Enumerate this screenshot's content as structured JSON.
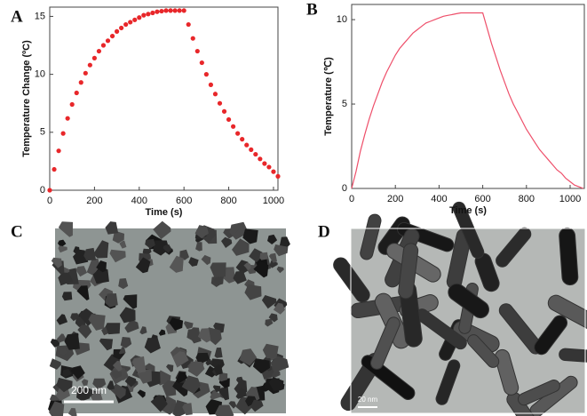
{
  "chart_data": [
    {
      "type": "scatter",
      "label": "A",
      "x_label": "Time (s)",
      "y_label": "Temperature  Change (ºC)",
      "color": "#e8272a",
      "xlim": [
        0,
        1020
      ],
      "xticks": [
        0,
        200,
        400,
        600,
        800,
        1000
      ],
      "ylim": [
        0,
        15.8
      ],
      "yticks": [
        0,
        5,
        10,
        15
      ],
      "x": [
        0,
        20,
        40,
        60,
        80,
        100,
        120,
        140,
        160,
        180,
        200,
        220,
        240,
        260,
        280,
        300,
        320,
        340,
        360,
        380,
        400,
        420,
        440,
        460,
        480,
        500,
        520,
        540,
        560,
        580,
        600,
        620,
        640,
        660,
        680,
        700,
        720,
        740,
        760,
        780,
        800,
        820,
        840,
        860,
        880,
        900,
        920,
        940,
        960,
        980,
        1000,
        1020
      ],
      "values": [
        0,
        1.8,
        3.4,
        4.9,
        6.2,
        7.4,
        8.4,
        9.3,
        10.1,
        10.8,
        11.4,
        12.0,
        12.5,
        12.9,
        13.3,
        13.7,
        14.0,
        14.3,
        14.5,
        14.7,
        14.9,
        15.1,
        15.2,
        15.3,
        15.4,
        15.45,
        15.5,
        15.5,
        15.5,
        15.5,
        15.5,
        14.3,
        13.1,
        12.0,
        11.0,
        10.0,
        9.1,
        8.3,
        7.5,
        6.8,
        6.1,
        5.5,
        4.9,
        4.4,
        3.9,
        3.5,
        3.1,
        2.7,
        2.3,
        2.0,
        1.6,
        1.2
      ]
    },
    {
      "type": "line",
      "label": "B",
      "x_label": "Time (s)",
      "y_label": "Temperature (℃)",
      "color": "#ee4f6a",
      "xlim": [
        0,
        1065
      ],
      "xticks": [
        0,
        200,
        400,
        600,
        800,
        1000
      ],
      "ylim": [
        0,
        10.9
      ],
      "yticks": [
        0,
        5,
        10
      ],
      "x": [
        0,
        20,
        40,
        60,
        80,
        100,
        120,
        140,
        160,
        180,
        200,
        220,
        240,
        260,
        280,
        300,
        320,
        340,
        360,
        380,
        400,
        420,
        440,
        460,
        480,
        500,
        520,
        540,
        560,
        580,
        600,
        620,
        640,
        660,
        680,
        700,
        720,
        740,
        760,
        780,
        800,
        820,
        840,
        860,
        880,
        900,
        920,
        940,
        960,
        980,
        1000,
        1020,
        1040,
        1060
      ],
      "values": [
        0,
        1.0,
        2.2,
        3.2,
        4.1,
        4.9,
        5.6,
        6.3,
        6.9,
        7.4,
        7.9,
        8.3,
        8.6,
        8.9,
        9.2,
        9.4,
        9.6,
        9.8,
        9.9,
        10.0,
        10.1,
        10.2,
        10.25,
        10.3,
        10.35,
        10.4,
        10.4,
        10.4,
        10.4,
        10.4,
        10.4,
        9.5,
        8.6,
        7.8,
        7.0,
        6.3,
        5.6,
        5.0,
        4.5,
        4.0,
        3.5,
        3.1,
        2.7,
        2.3,
        2.0,
        1.7,
        1.4,
        1.1,
        0.9,
        0.6,
        0.4,
        0.2,
        0.1,
        0
      ]
    }
  ],
  "images": [
    {
      "label": "C",
      "scale_bar": "200 nm"
    },
    {
      "label": "D",
      "scale_bar": "20 nm"
    }
  ]
}
